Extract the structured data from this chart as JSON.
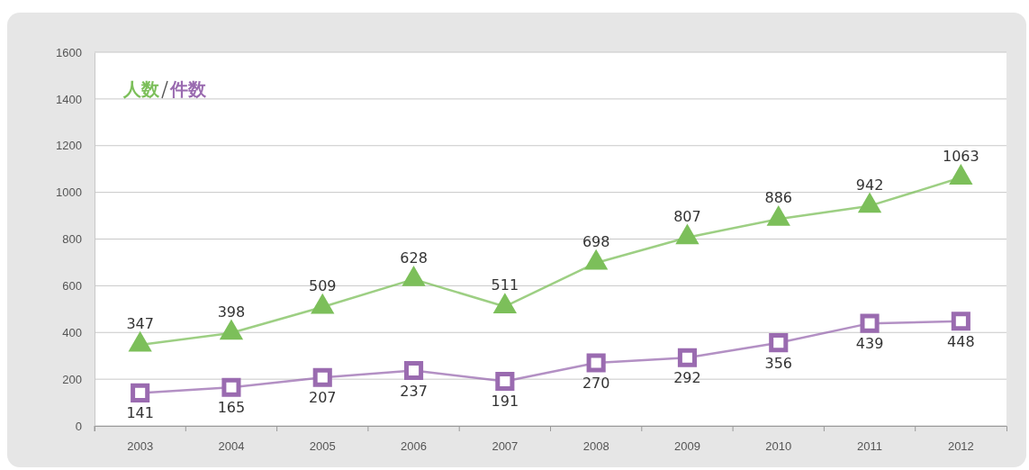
{
  "chart_data": {
    "type": "line",
    "categories": [
      "2003",
      "2004",
      "2005",
      "2006",
      "2007",
      "2008",
      "2009",
      "2010",
      "2011",
      "2012"
    ],
    "series": [
      {
        "name": "人数",
        "color": "#7cbf5a",
        "marker": "triangle",
        "values": [
          347,
          398,
          509,
          628,
          511,
          698,
          807,
          886,
          942,
          1063
        ]
      },
      {
        "name": "件数",
        "color": "#9a6bb0",
        "marker": "square",
        "values": [
          141,
          165,
          207,
          237,
          191,
          270,
          292,
          356,
          439,
          448
        ]
      }
    ],
    "ylim": [
      0,
      1600
    ],
    "yticks": [
      0,
      200,
      400,
      600,
      800,
      1000,
      1200,
      1400,
      1600
    ],
    "grid": "y",
    "legend": "top left",
    "data_labels": true,
    "line_style": "solid"
  }
}
